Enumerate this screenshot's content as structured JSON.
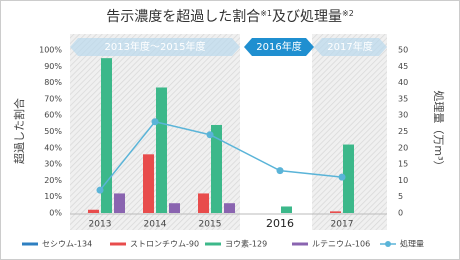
{
  "chart_data": {
    "type": "bar",
    "title_parts": [
      "告示濃度を超過した割合",
      "※1",
      "及び処理量",
      "※2"
    ],
    "period_labels": [
      "2013年度〜2015年度",
      "2016年度",
      "2017年度"
    ],
    "ylabel": "超過した割合",
    "y2label": "処理量（万m³）",
    "categories": [
      "2013",
      "2014",
      "2015",
      "2016",
      "2017"
    ],
    "series": [
      {
        "name": "セシウム-134",
        "color": "#2e7fc1",
        "values": [
          0,
          0,
          0,
          0,
          0
        ]
      },
      {
        "name": "ストロンチウム-90",
        "color": "#e84c4c",
        "values": [
          2,
          36,
          12,
          0,
          1
        ]
      },
      {
        "name": "ヨウ素-129",
        "color": "#3cb88a",
        "values": [
          95,
          77,
          54,
          4,
          42
        ]
      },
      {
        "name": "ルテニウム-106",
        "color": "#8a64b0",
        "values": [
          12,
          6,
          6,
          0,
          0
        ]
      },
      {
        "name": "処理量",
        "color": "#5ab4d8",
        "type": "line",
        "axis": "y2",
        "values": [
          7,
          28,
          24,
          13,
          11
        ]
      }
    ],
    "ylim": [
      0,
      100
    ],
    "yticks": [
      {
        "value": 0,
        "label": "0%"
      },
      {
        "value": 10,
        "label": "10%"
      },
      {
        "value": 20,
        "label": "20%"
      },
      {
        "value": 30,
        "label": "30%"
      },
      {
        "value": 40,
        "label": "40%"
      },
      {
        "value": 50,
        "label": "50%"
      },
      {
        "value": 60,
        "label": "60%"
      },
      {
        "value": 70,
        "label": "70%"
      },
      {
        "value": 80,
        "label": "80%"
      },
      {
        "value": 90,
        "label": "90%"
      },
      {
        "value": 100,
        "label": "100%"
      }
    ],
    "y2lim": [
      0,
      50
    ],
    "y2ticks": [
      0,
      5,
      10,
      15,
      20,
      25,
      30,
      35,
      40,
      45,
      50
    ]
  }
}
